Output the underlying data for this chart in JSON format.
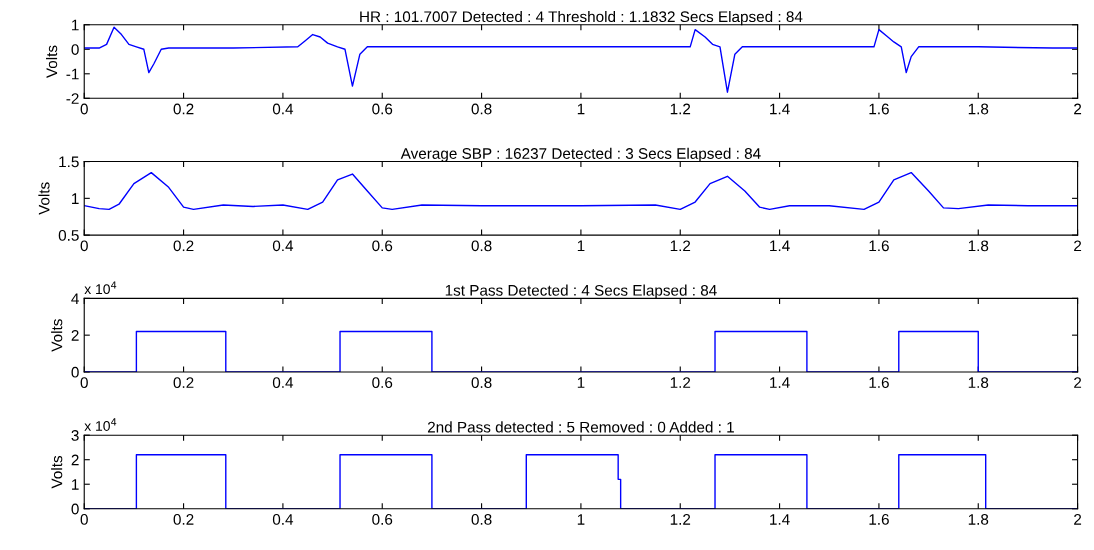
{
  "chart_data": [
    {
      "type": "line",
      "title": "HR : 101.7007 Detected : 4 Threshold : 1.1832 Secs Elapsed : 84",
      "ylabel": "Volts",
      "xlim": [
        0,
        2
      ],
      "xticks": [
        0,
        0.2,
        0.4,
        0.6,
        0.8,
        1,
        1.2,
        1.4,
        1.6,
        1.8,
        2
      ],
      "ylim": [
        -2,
        1
      ],
      "yticks": [
        -2,
        -1,
        0,
        1
      ],
      "grid": false,
      "series": [
        {
          "color": "#0000ff",
          "x": [
            0,
            0.03,
            0.045,
            0.06,
            0.075,
            0.09,
            0.105,
            0.12,
            0.13,
            0.14,
            0.155,
            0.17,
            0.3,
            0.43,
            0.445,
            0.46,
            0.475,
            0.49,
            0.51,
            0.525,
            0.54,
            0.555,
            0.57,
            0.7,
            0.85,
            1.0,
            1.22,
            1.23,
            1.25,
            1.265,
            1.28,
            1.295,
            1.31,
            1.325,
            1.4,
            1.59,
            1.6,
            1.615,
            1.63,
            1.645,
            1.655,
            1.665,
            1.68,
            1.8,
            1.95,
            2
          ],
          "values": [
            0.05,
            0.05,
            0.2,
            0.9,
            0.6,
            0.2,
            0.1,
            0.0,
            -0.95,
            -0.6,
            0.0,
            0.05,
            0.05,
            0.1,
            0.35,
            0.6,
            0.5,
            0.25,
            0.1,
            0.0,
            -1.5,
            -0.2,
            0.1,
            0.1,
            0.1,
            0.1,
            0.1,
            0.8,
            0.5,
            0.2,
            0.1,
            -1.75,
            -0.2,
            0.1,
            0.1,
            0.1,
            0.8,
            0.55,
            0.3,
            0.1,
            -0.95,
            -0.3,
            0.1,
            0.1,
            0.05,
            0.05
          ]
        }
      ]
    },
    {
      "type": "line",
      "title": "Average SBP : 16237 Detected : 3 Secs Elapsed : 84",
      "ylabel": "Volts",
      "xlim": [
        0,
        2
      ],
      "xticks": [
        0,
        0.2,
        0.4,
        0.6,
        0.8,
        1,
        1.2,
        1.4,
        1.6,
        1.8,
        2
      ],
      "ylim": [
        0.5,
        1.5
      ],
      "yticks": [
        0.5,
        1,
        1.5
      ],
      "grid": false,
      "series": [
        {
          "color": "#0000ff",
          "x": [
            0,
            0.03,
            0.05,
            0.07,
            0.1,
            0.135,
            0.17,
            0.2,
            0.22,
            0.28,
            0.34,
            0.4,
            0.45,
            0.48,
            0.51,
            0.54,
            0.57,
            0.6,
            0.62,
            0.68,
            0.8,
            1.0,
            1.15,
            1.2,
            1.23,
            1.26,
            1.295,
            1.33,
            1.36,
            1.38,
            1.42,
            1.5,
            1.57,
            1.6,
            1.63,
            1.665,
            1.7,
            1.73,
            1.76,
            1.82,
            1.9,
            2
          ],
          "values": [
            0.9,
            0.86,
            0.85,
            0.92,
            1.2,
            1.35,
            1.15,
            0.88,
            0.85,
            0.91,
            0.89,
            0.91,
            0.85,
            0.95,
            1.25,
            1.33,
            1.1,
            0.87,
            0.85,
            0.91,
            0.9,
            0.9,
            0.91,
            0.85,
            0.95,
            1.2,
            1.3,
            1.1,
            0.88,
            0.85,
            0.9,
            0.9,
            0.85,
            0.95,
            1.25,
            1.35,
            1.1,
            0.87,
            0.86,
            0.91,
            0.9,
            0.9
          ]
        }
      ]
    },
    {
      "type": "line",
      "title": "1st Pass Detected : 4 Secs Elapsed : 84",
      "ylabel": "Volts",
      "annotations": [
        "x 10$^{4}$"
      ],
      "xlim": [
        0,
        2
      ],
      "xticks": [
        0,
        0.2,
        0.4,
        0.6,
        0.8,
        1,
        1.2,
        1.4,
        1.6,
        1.8,
        2
      ],
      "ylim": [
        0,
        4
      ],
      "yticks": [
        0,
        2,
        4
      ],
      "grid": false,
      "series": [
        {
          "color": "#0000ff",
          "x": [
            0,
            0.105,
            0.105,
            0.285,
            0.285,
            0.515,
            0.515,
            0.7,
            0.7,
            1.27,
            1.27,
            1.455,
            1.455,
            1.64,
            1.64,
            1.8,
            1.8,
            2
          ],
          "values": [
            0,
            0,
            2.2,
            2.2,
            0,
            0,
            2.2,
            2.2,
            0,
            0,
            2.2,
            2.2,
            0,
            0,
            2.2,
            2.2,
            0,
            0
          ]
        }
      ]
    },
    {
      "type": "line",
      "title": "2nd Pass detected : 5 Removed : 0 Added : 1",
      "ylabel": "Volts",
      "annotations": [
        "x 10$^{4}$"
      ],
      "xlim": [
        0,
        2
      ],
      "xticks": [
        0,
        0.2,
        0.4,
        0.6,
        0.8,
        1,
        1.2,
        1.4,
        1.6,
        1.8,
        2
      ],
      "ylim": [
        0,
        3
      ],
      "yticks": [
        0,
        1,
        2,
        3
      ],
      "grid": false,
      "series": [
        {
          "color": "#0000ff",
          "x": [
            0,
            0.105,
            0.105,
            0.285,
            0.285,
            0.515,
            0.515,
            0.7,
            0.7,
            0.89,
            0.89,
            1.075,
            1.075,
            1.08,
            1.08,
            1.27,
            1.27,
            1.455,
            1.455,
            1.64,
            1.64,
            1.815,
            1.815,
            2
          ],
          "values": [
            0,
            0,
            2.2,
            2.2,
            0,
            0,
            2.2,
            2.2,
            0,
            0,
            2.2,
            2.2,
            1.2,
            1.2,
            0,
            0,
            2.2,
            2.2,
            0,
            0,
            2.2,
            2.2,
            0,
            0
          ]
        }
      ]
    }
  ]
}
